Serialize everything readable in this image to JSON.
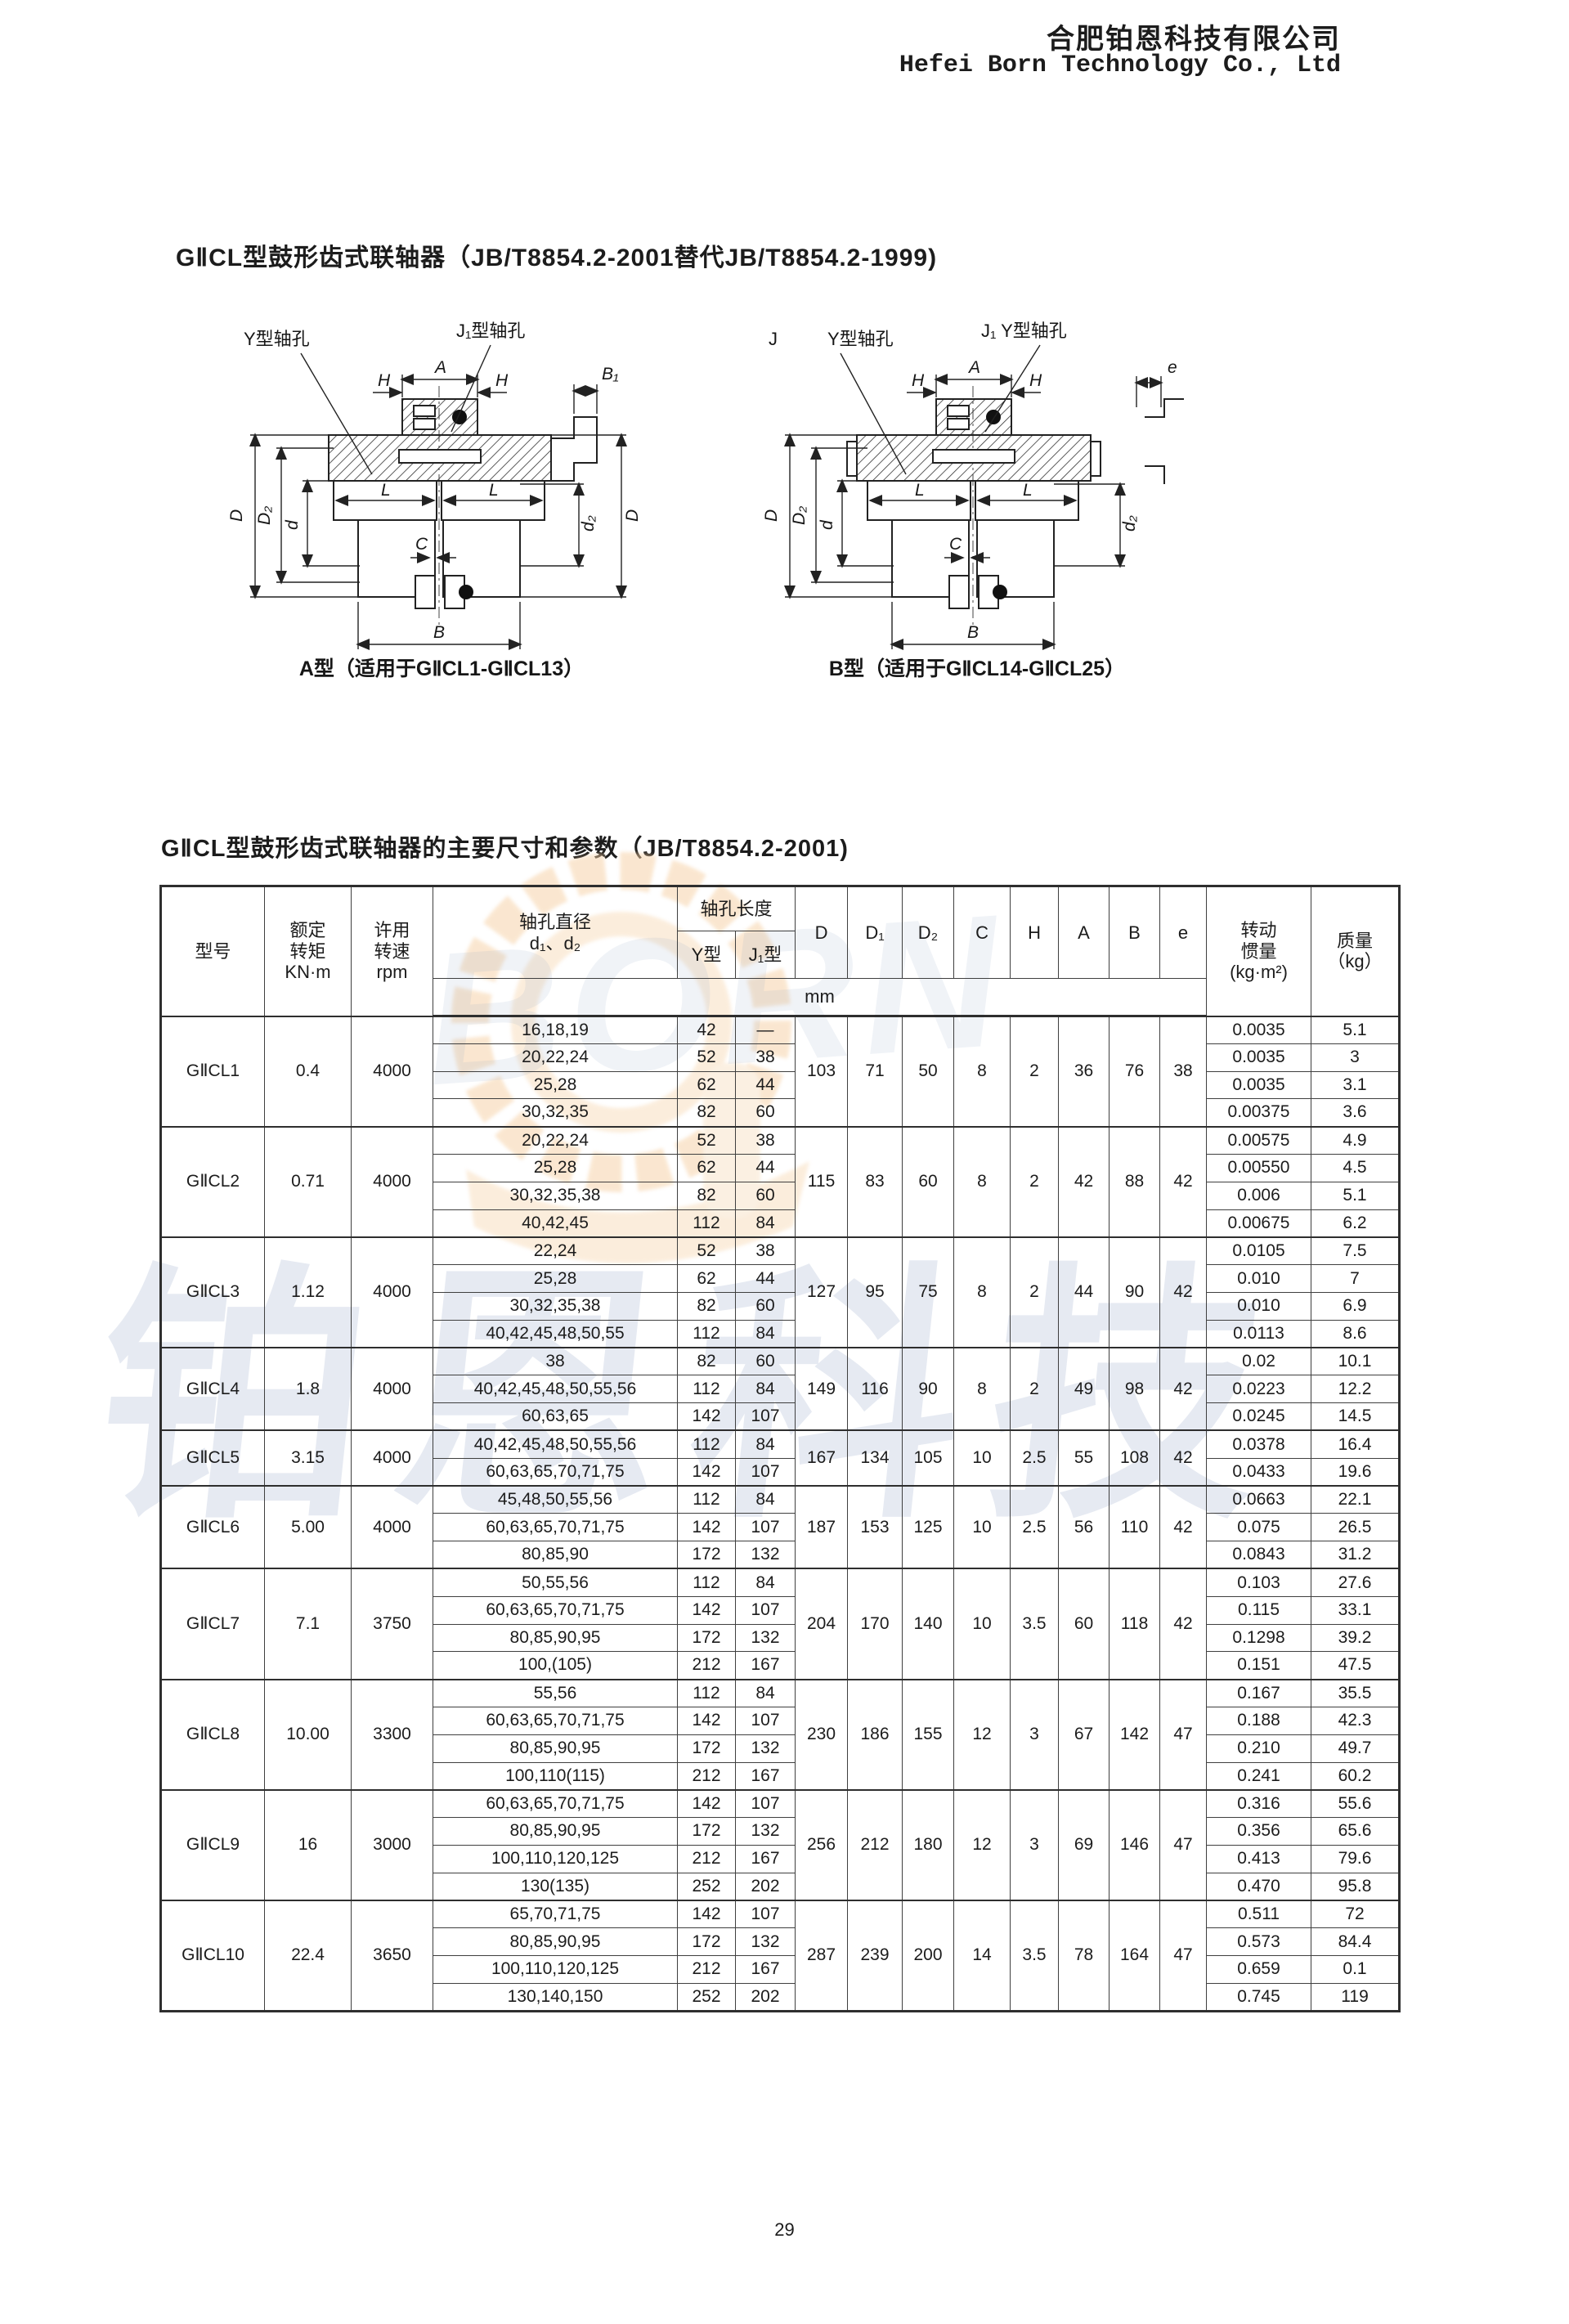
{
  "page": {
    "company_cn": "合肥铂恩科技有限公司",
    "company_en": "Hefei Born Technology Co., Ltd",
    "section_title": "GⅡCL型鼓形齿式联轴器（JB/T8854.2-2001替代JB/T8854.2-1999)",
    "page_number": "29",
    "watermark_cn": "铂恩科技",
    "watermark_logo": "BORN",
    "accent_orange": "#f6c896",
    "accent_blue": "#8098bc"
  },
  "diagrams": {
    "a": {
      "caption": "A型（适用于GⅡCL1-GⅡCL13）",
      "labels": {
        "y_hole": "Y型轴孔",
        "j1_hole": "J₁型轴孔",
        "b1": "B₁",
        "a": "A",
        "h_left": "H",
        "h_right": "H",
        "D_left": "D",
        "D2_left": "D₂",
        "d_left": "d",
        "L_left": "L",
        "L_right": "L",
        "d2_right": "d₂",
        "D_right": "D",
        "c": "C",
        "b": "B"
      }
    },
    "b": {
      "caption": "B型（适用于GⅡCL14-GⅡCL25）",
      "labels": {
        "j": "J",
        "y_hole": "Y型轴孔",
        "j1y_hole": "J₁ Y型轴孔",
        "e": "e",
        "a": "A",
        "h_left": "H",
        "h_right": "H",
        "D_left": "D",
        "D2_left": "D₂",
        "d_left": "d",
        "L_left": "L",
        "L_right": "L",
        "d2_right": "d₂",
        "c": "C",
        "b": "B"
      }
    }
  },
  "table": {
    "title": "GⅡCL型鼓形齿式联轴器的主要尺寸和参数（JB/T8854.2-2001)",
    "header": {
      "model": "型号",
      "torque": "额定\n转矩\nKN·m",
      "speed": "许用\n转速\nrpm",
      "bore_dia": "轴孔直径\nd₁、d₂",
      "bore_len": "轴孔长度",
      "y_type": "Y型",
      "j1_type": "J₁型",
      "unit_row": "mm",
      "dims": [
        "D",
        "D₁",
        "D₂",
        "C",
        "H",
        "A",
        "B",
        "e"
      ],
      "inertia": "转动\n惯量\n(kg·m²)",
      "mass": "质量\n（kg）"
    },
    "groups": [
      {
        "model": "GⅡCL1",
        "torque": "0.4",
        "speed": "4000",
        "dims": [
          "103",
          "71",
          "50",
          "8",
          "2",
          "36",
          "76",
          "38"
        ],
        "rows": [
          {
            "bore": "16,18,19",
            "y": "42",
            "j1": "—",
            "inertia": "0.0035",
            "mass": "5.1"
          },
          {
            "bore": "20,22,24",
            "y": "52",
            "j1": "38",
            "inertia": "0.0035",
            "mass": "3"
          },
          {
            "bore": "25,28",
            "y": "62",
            "j1": "44",
            "inertia": "0.0035",
            "mass": "3.1"
          },
          {
            "bore": "30,32,35",
            "y": "82",
            "j1": "60",
            "inertia": "0.00375",
            "mass": "3.6"
          }
        ]
      },
      {
        "model": "GⅡCL2",
        "torque": "0.71",
        "speed": "4000",
        "dims": [
          "115",
          "83",
          "60",
          "8",
          "2",
          "42",
          "88",
          "42"
        ],
        "rows": [
          {
            "bore": "20,22,24",
            "y": "52",
            "j1": "38",
            "inertia": "0.00575",
            "mass": "4.9"
          },
          {
            "bore": "25,28",
            "y": "62",
            "j1": "44",
            "inertia": "0.00550",
            "mass": "4.5"
          },
          {
            "bore": "30,32,35,38",
            "y": "82",
            "j1": "60",
            "inertia": "0.006",
            "mass": "5.1"
          },
          {
            "bore": "40,42,45",
            "y": "112",
            "j1": "84",
            "inertia": "0.00675",
            "mass": "6.2"
          }
        ]
      },
      {
        "model": "GⅡCL3",
        "torque": "1.12",
        "speed": "4000",
        "dims": [
          "127",
          "95",
          "75",
          "8",
          "2",
          "44",
          "90",
          "42"
        ],
        "rows": [
          {
            "bore": "22,24",
            "y": "52",
            "j1": "38",
            "inertia": "0.0105",
            "mass": "7.5"
          },
          {
            "bore": "25,28",
            "y": "62",
            "j1": "44",
            "inertia": "0.010",
            "mass": "7"
          },
          {
            "bore": "30,32,35,38",
            "y": "82",
            "j1": "60",
            "inertia": "0.010",
            "mass": "6.9"
          },
          {
            "bore": "40,42,45,48,50,55",
            "y": "112",
            "j1": "84",
            "inertia": "0.0113",
            "mass": "8.6"
          }
        ]
      },
      {
        "model": "GⅡCL4",
        "torque": "1.8",
        "speed": "4000",
        "dims": [
          "149",
          "116",
          "90",
          "8",
          "2",
          "49",
          "98",
          "42"
        ],
        "rows": [
          {
            "bore": "38",
            "y": "82",
            "j1": "60",
            "inertia": "0.02",
            "mass": "10.1"
          },
          {
            "bore": "40,42,45,48,50,55,56",
            "y": "112",
            "j1": "84",
            "inertia": "0.0223",
            "mass": "12.2"
          },
          {
            "bore": "60,63,65",
            "y": "142",
            "j1": "107",
            "inertia": "0.0245",
            "mass": "14.5"
          }
        ]
      },
      {
        "model": "GⅡCL5",
        "torque": "3.15",
        "speed": "4000",
        "dims": [
          "167",
          "134",
          "105",
          "10",
          "2.5",
          "55",
          "108",
          "42"
        ],
        "rows": [
          {
            "bore": "40,42,45,48,50,55,56",
            "y": "112",
            "j1": "84",
            "inertia": "0.0378",
            "mass": "16.4"
          },
          {
            "bore": "60,63,65,70,71,75",
            "y": "142",
            "j1": "107",
            "inertia": "0.0433",
            "mass": "19.6"
          }
        ]
      },
      {
        "model": "GⅡCL6",
        "torque": "5.00",
        "speed": "4000",
        "dims": [
          "187",
          "153",
          "125",
          "10",
          "2.5",
          "56",
          "110",
          "42"
        ],
        "rows": [
          {
            "bore": "45,48,50,55,56",
            "y": "112",
            "j1": "84",
            "inertia": "0.0663",
            "mass": "22.1"
          },
          {
            "bore": "60,63,65,70,71,75",
            "y": "142",
            "j1": "107",
            "inertia": "0.075",
            "mass": "26.5"
          },
          {
            "bore": "80,85,90",
            "y": "172",
            "j1": "132",
            "inertia": "0.0843",
            "mass": "31.2"
          }
        ]
      },
      {
        "model": "GⅡCL7",
        "torque": "7.1",
        "speed": "3750",
        "dims": [
          "204",
          "170",
          "140",
          "10",
          "3.5",
          "60",
          "118",
          "42"
        ],
        "rows": [
          {
            "bore": "50,55,56",
            "y": "112",
            "j1": "84",
            "inertia": "0.103",
            "mass": "27.6"
          },
          {
            "bore": "60,63,65,70,71,75",
            "y": "142",
            "j1": "107",
            "inertia": "0.115",
            "mass": "33.1"
          },
          {
            "bore": "80,85,90,95",
            "y": "172",
            "j1": "132",
            "inertia": "0.1298",
            "mass": "39.2"
          },
          {
            "bore": "100,(105)",
            "y": "212",
            "j1": "167",
            "inertia": "0.151",
            "mass": "47.5"
          }
        ]
      },
      {
        "model": "GⅡCL8",
        "torque": "10.00",
        "speed": "3300",
        "dims": [
          "230",
          "186",
          "155",
          "12",
          "3",
          "67",
          "142",
          "47"
        ],
        "rows": [
          {
            "bore": "55,56",
            "y": "112",
            "j1": "84",
            "inertia": "0.167",
            "mass": "35.5"
          },
          {
            "bore": "60,63,65,70,71,75",
            "y": "142",
            "j1": "107",
            "inertia": "0.188",
            "mass": "42.3"
          },
          {
            "bore": "80,85,90,95",
            "y": "172",
            "j1": "132",
            "inertia": "0.210",
            "mass": "49.7"
          },
          {
            "bore": "100,110(115)",
            "y": "212",
            "j1": "167",
            "inertia": "0.241",
            "mass": "60.2"
          }
        ]
      },
      {
        "model": "GⅡCL9",
        "torque": "16",
        "speed": "3000",
        "dims": [
          "256",
          "212",
          "180",
          "12",
          "3",
          "69",
          "146",
          "47"
        ],
        "rows": [
          {
            "bore": "60,63,65,70,71,75",
            "y": "142",
            "j1": "107",
            "inertia": "0.316",
            "mass": "55.6"
          },
          {
            "bore": "80,85,90,95",
            "y": "172",
            "j1": "132",
            "inertia": "0.356",
            "mass": "65.6"
          },
          {
            "bore": "100,110,120,125",
            "y": "212",
            "j1": "167",
            "inertia": "0.413",
            "mass": "79.6"
          },
          {
            "bore": "130(135)",
            "y": "252",
            "j1": "202",
            "inertia": "0.470",
            "mass": "95.8"
          }
        ]
      },
      {
        "model": "GⅡCL10",
        "torque": "22.4",
        "speed": "3650",
        "dims": [
          "287",
          "239",
          "200",
          "14",
          "3.5",
          "78",
          "164",
          "47"
        ],
        "rows": [
          {
            "bore": "65,70,71,75",
            "y": "142",
            "j1": "107",
            "inertia": "0.511",
            "mass": "72"
          },
          {
            "bore": "80,85,90,95",
            "y": "172",
            "j1": "132",
            "inertia": "0.573",
            "mass": "84.4"
          },
          {
            "bore": "100,110,120,125",
            "y": "212",
            "j1": "167",
            "inertia": "0.659",
            "mass": "0.1"
          },
          {
            "bore": "130,140,150",
            "y": "252",
            "j1": "202",
            "inertia": "0.745",
            "mass": "119"
          }
        ]
      }
    ]
  }
}
